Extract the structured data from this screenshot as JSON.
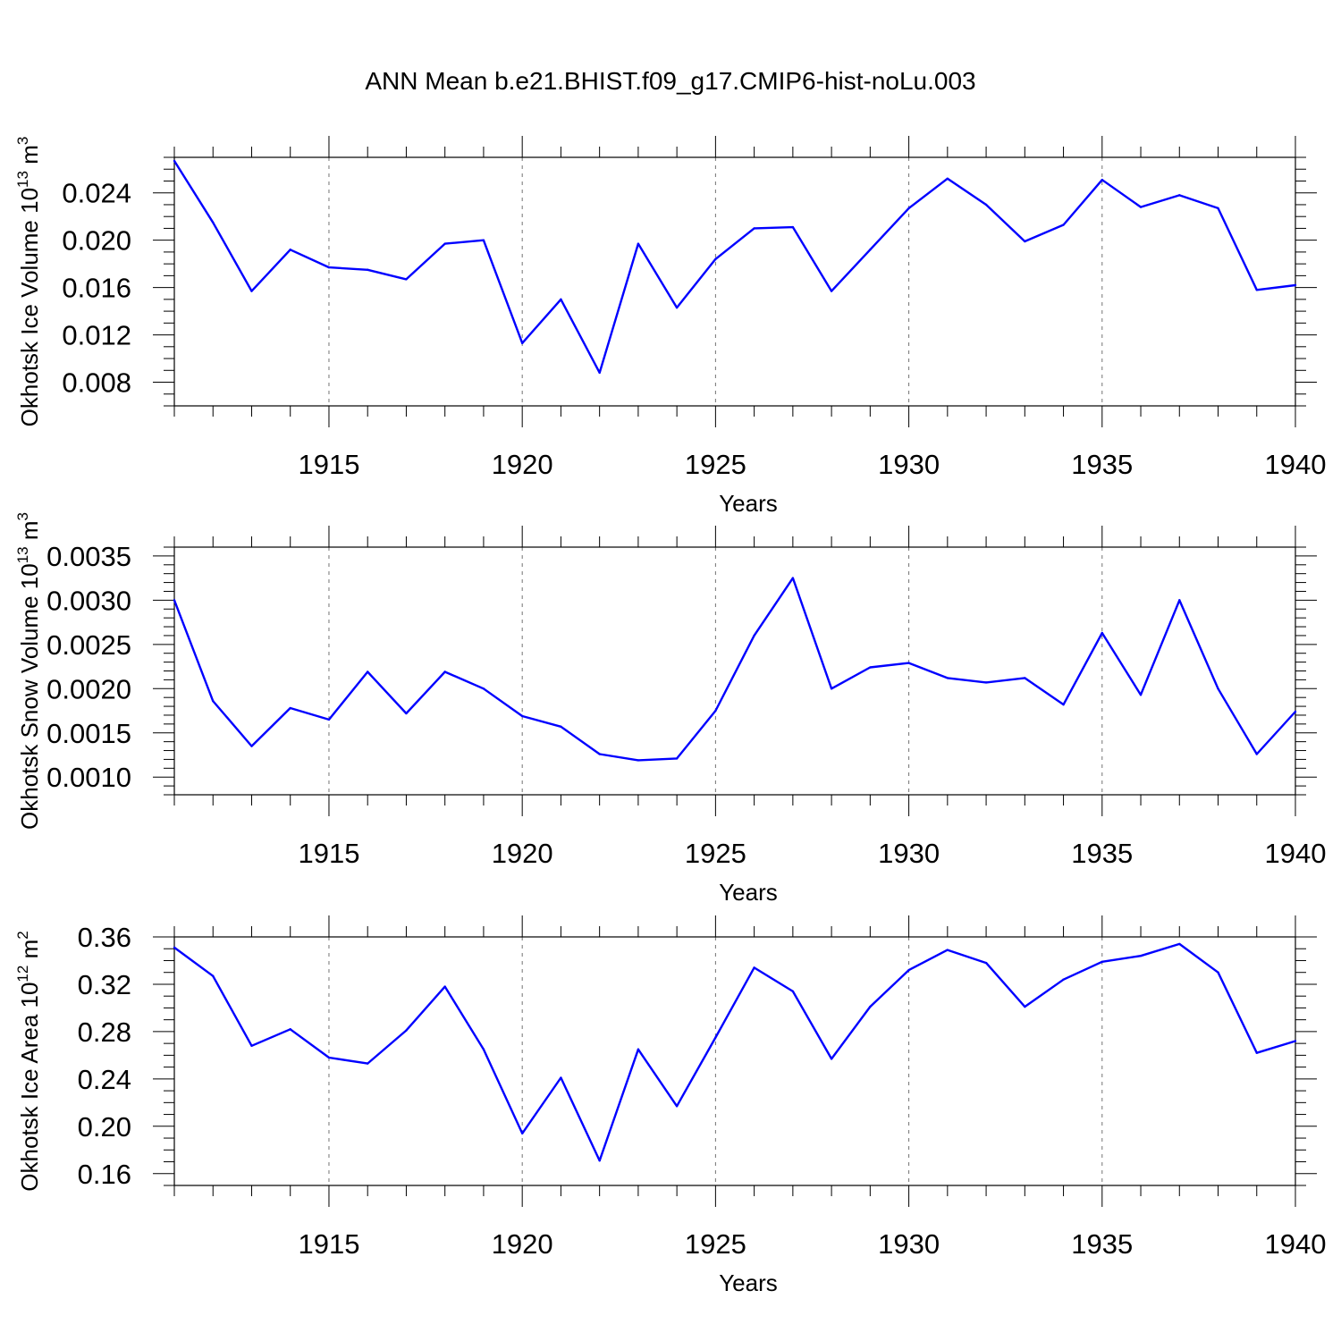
{
  "title": "ANN Mean b.e21.BHIST.f09_g17.CMIP6-hist-noLu.003",
  "colors": {
    "series": "#0000ff",
    "axis": "#000000",
    "background": "#ffffff"
  },
  "chart_data": [
    {
      "type": "line",
      "ylabel_main": "Okhotsk Ice Volume 10",
      "ylabel_exp": "13",
      "ylabel_unit": " m",
      "ylabel_unit_exp": "3",
      "xlabel": "Years",
      "xlim": [
        1911,
        1940
      ],
      "ylim": [
        0.006,
        0.027
      ],
      "yticks": [
        0.008,
        0.012,
        0.016,
        0.02,
        0.024
      ],
      "ytick_labels": [
        "0.008",
        "0.012",
        "0.016",
        "0.020",
        "0.024"
      ],
      "yminor_step": 0.001,
      "xticks": [
        1915,
        1920,
        1925,
        1930,
        1935,
        1940
      ],
      "xtick_labels": [
        "1915",
        "1920",
        "1925",
        "1930",
        "1935",
        "1940"
      ],
      "grid": "vertical dashed at major x ticks",
      "x": [
        1911,
        1912,
        1913,
        1914,
        1915,
        1916,
        1917,
        1918,
        1919,
        1920,
        1921,
        1922,
        1923,
        1924,
        1925,
        1926,
        1927,
        1928,
        1929,
        1930,
        1931,
        1932,
        1933,
        1934,
        1935,
        1936,
        1937,
        1938,
        1939,
        1940
      ],
      "values": [
        0.0267,
        0.0215,
        0.0157,
        0.0192,
        0.0177,
        0.0175,
        0.0167,
        0.0197,
        0.02,
        0.0113,
        0.015,
        0.0088,
        0.0197,
        0.0143,
        0.0184,
        0.021,
        0.0211,
        0.0157,
        0.0192,
        0.0227,
        0.0252,
        0.023,
        0.0199,
        0.0213,
        0.0251,
        0.0228,
        0.0238,
        0.0227,
        0.0158,
        0.0162
      ]
    },
    {
      "type": "line",
      "ylabel_main": "Okhotsk Snow Volume 10",
      "ylabel_exp": "13",
      "ylabel_unit": " m",
      "ylabel_unit_exp": "3",
      "xlabel": "Years",
      "xlim": [
        1911,
        1940
      ],
      "ylim": [
        0.0008,
        0.0036
      ],
      "yticks": [
        0.001,
        0.0015,
        0.002,
        0.0025,
        0.003,
        0.0035
      ],
      "ytick_labels": [
        "0.0010",
        "0.0015",
        "0.0020",
        "0.0025",
        "0.0030",
        "0.0035"
      ],
      "yminor_step": 0.0001,
      "xticks": [
        1915,
        1920,
        1925,
        1930,
        1935,
        1940
      ],
      "xtick_labels": [
        "1915",
        "1920",
        "1925",
        "1930",
        "1935",
        "1940"
      ],
      "grid": "vertical dashed at major x ticks",
      "x": [
        1911,
        1912,
        1913,
        1914,
        1915,
        1916,
        1917,
        1918,
        1919,
        1920,
        1921,
        1922,
        1923,
        1924,
        1925,
        1926,
        1927,
        1928,
        1929,
        1930,
        1931,
        1932,
        1933,
        1934,
        1935,
        1936,
        1937,
        1938,
        1939,
        1940
      ],
      "values": [
        0.003,
        0.00186,
        0.00135,
        0.00178,
        0.00165,
        0.00219,
        0.00172,
        0.00219,
        0.002,
        0.00169,
        0.00157,
        0.00126,
        0.00119,
        0.00121,
        0.00175,
        0.0026,
        0.00325,
        0.002,
        0.00224,
        0.00229,
        0.00212,
        0.00207,
        0.00212,
        0.00182,
        0.00263,
        0.00193,
        0.003,
        0.002,
        0.00126,
        0.00174
      ]
    },
    {
      "type": "line",
      "ylabel_main": "Okhotsk Ice Area 10",
      "ylabel_exp": "12",
      "ylabel_unit": " m",
      "ylabel_unit_exp": "2",
      "xlabel": "Years",
      "xlim": [
        1911,
        1940
      ],
      "ylim": [
        0.15,
        0.36
      ],
      "yticks": [
        0.16,
        0.2,
        0.24,
        0.28,
        0.32,
        0.36
      ],
      "ytick_labels": [
        "0.16",
        "0.20",
        "0.24",
        "0.28",
        "0.32",
        "0.36"
      ],
      "yminor_step": 0.01,
      "xticks": [
        1915,
        1920,
        1925,
        1930,
        1935,
        1940
      ],
      "xtick_labels": [
        "1915",
        "1920",
        "1925",
        "1930",
        "1935",
        "1940"
      ],
      "grid": "vertical dashed at major x ticks",
      "x": [
        1911,
        1912,
        1913,
        1914,
        1915,
        1916,
        1917,
        1918,
        1919,
        1920,
        1921,
        1922,
        1923,
        1924,
        1925,
        1926,
        1927,
        1928,
        1929,
        1930,
        1931,
        1932,
        1933,
        1934,
        1935,
        1936,
        1937,
        1938,
        1939,
        1940
      ],
      "values": [
        0.351,
        0.327,
        0.268,
        0.282,
        0.258,
        0.253,
        0.281,
        0.318,
        0.265,
        0.194,
        0.241,
        0.171,
        0.265,
        0.217,
        0.275,
        0.334,
        0.314,
        0.257,
        0.301,
        0.332,
        0.349,
        0.338,
        0.301,
        0.324,
        0.339,
        0.344,
        0.354,
        0.33,
        0.262,
        0.272
      ]
    }
  ]
}
